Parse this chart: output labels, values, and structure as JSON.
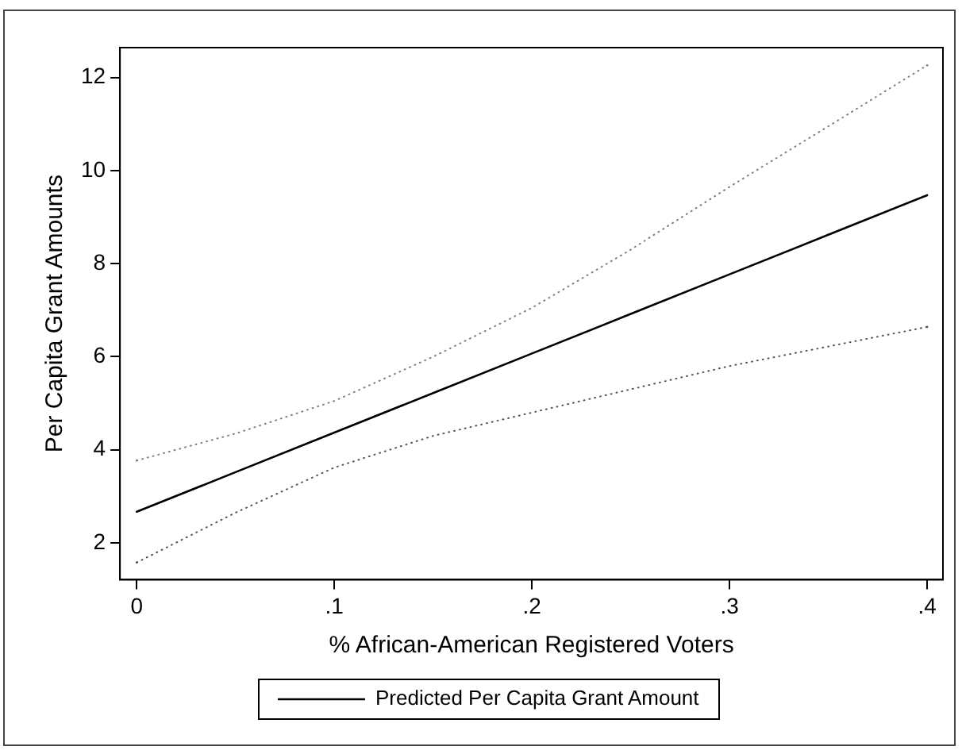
{
  "chart_data": {
    "type": "line",
    "xlabel": "% African-American Registered Voters",
    "ylabel": "Per Capita Grant Amounts",
    "x": [
      0,
      0.05,
      0.1,
      0.15,
      0.2,
      0.25,
      0.3,
      0.35,
      0.4
    ],
    "series": [
      {
        "name": "Predicted Per Capita Grant Amount",
        "color": "#000000",
        "values": [
          2.67,
          3.52,
          4.37,
          5.22,
          6.07,
          6.92,
          7.77,
          8.62,
          9.47
        ]
      },
      {
        "color": "#808080",
        "line_style": "dotted",
        "values": [
          3.77,
          4.35,
          5.05,
          6.0,
          7.05,
          8.3,
          9.65,
          10.95,
          12.26
        ]
      },
      {
        "color": "#555555",
        "line_style": "dotted",
        "values": [
          1.58,
          2.65,
          3.62,
          4.3,
          4.8,
          5.3,
          5.8,
          6.22,
          6.64
        ]
      }
    ],
    "xlim": [
      -0.0085,
      0.408
    ],
    "xticks": [
      0,
      {
        "value": 0.1,
        "label": ".1"
      },
      {
        "value": 0.2,
        "label": ".2"
      },
      {
        "value": 0.3,
        "label": ".3"
      },
      {
        "value": 0.4,
        "label": ".4"
      }
    ],
    "ylim": [
      1.21,
      12.64
    ],
    "yticks": [
      2,
      4,
      6,
      8,
      10,
      12
    ],
    "grid": false,
    "legend": "bottom",
    "marker": "none",
    "line_style": "solid"
  }
}
